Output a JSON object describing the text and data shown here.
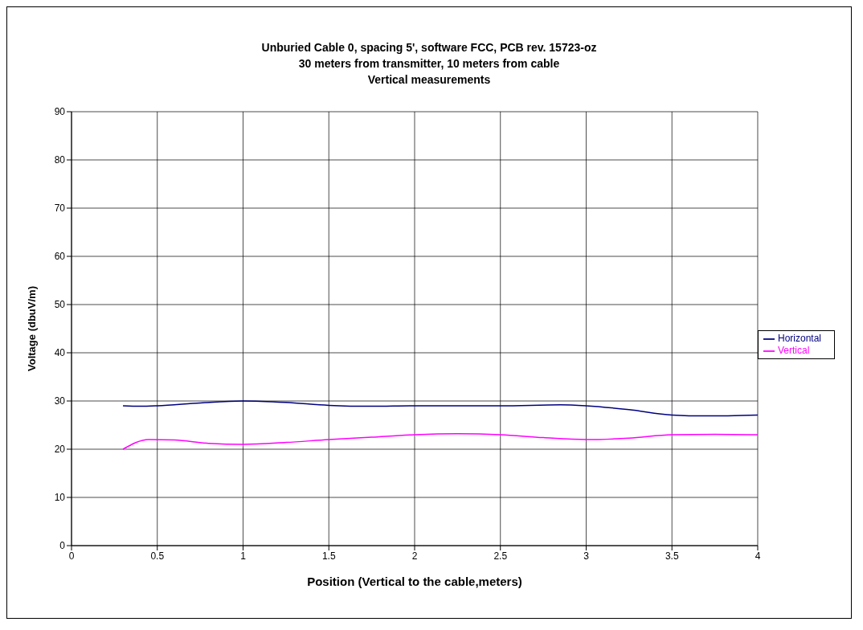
{
  "chart_data": {
    "type": "line",
    "title": "Unburied Cable 0, spacing 5', software FCC, PCB rev. 15723-oz\n30 meters from transmitter, 10 meters from cable\nVertical measurements",
    "xlabel": "Position (Vertical to the cable,meters)",
    "ylabel": "Voltage (dbuV/m)",
    "xlim": [
      0,
      4
    ],
    "xticks": [
      0,
      0.5,
      1,
      1.5,
      2,
      2.5,
      3,
      3.5,
      4
    ],
    "ylim": [
      0,
      90
    ],
    "yticks": [
      0,
      10,
      20,
      30,
      40,
      50,
      60,
      70,
      80,
      90
    ],
    "grid": true,
    "legend": "right",
    "marker": "none",
    "line_style": "solid",
    "series": [
      {
        "name": "Horizontal",
        "color": "#000080",
        "x": [
          0.3,
          0.4,
          0.5,
          0.75,
          1,
          1.25,
          1.5,
          1.75,
          2,
          2.5,
          2.85,
          3,
          3.25,
          3.5,
          3.7,
          4
        ],
        "values": [
          29,
          28.9,
          29,
          29.6,
          30,
          29.7,
          29.1,
          28.9,
          29,
          29,
          29.2,
          29,
          28.2,
          27.1,
          26.9,
          27.1
        ]
      },
      {
        "name": "Vertical",
        "color": "#ff00ff",
        "x": [
          0.3,
          0.45,
          0.6,
          0.8,
          1,
          1.25,
          1.5,
          1.75,
          2,
          2.25,
          2.5,
          2.75,
          3,
          3.25,
          3.5,
          3.75,
          4
        ],
        "values": [
          20,
          22,
          21.9,
          21.2,
          21,
          21.4,
          22,
          22.5,
          23,
          23.2,
          23,
          22.4,
          22,
          22.3,
          23,
          23.1,
          23
        ]
      }
    ]
  }
}
